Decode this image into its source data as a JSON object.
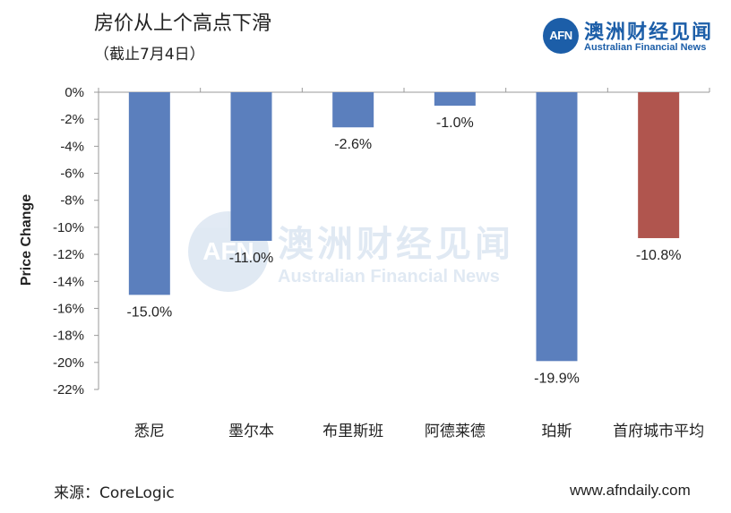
{
  "header": {
    "title": "房价从上个高点下滑",
    "subtitle": "（截止7月4日）"
  },
  "logo": {
    "badge": "AFN",
    "name_cn": "澳洲财经见闻",
    "name_en": "Australian Financial News"
  },
  "footer": {
    "source": "来源：CoreLogic",
    "website": "www.afndaily.com"
  },
  "colors": {
    "bar_default": "#5b7fbd",
    "bar_highlight": "#b0554e",
    "axis": "#9a9a9a",
    "brand": "#1c5ea8"
  },
  "chart_data": {
    "type": "bar",
    "title": "房价从上个高点下滑",
    "subtitle": "（截止7月4日）",
    "xlabel": "",
    "ylabel": "Price Change",
    "categories": [
      "悉尼",
      "墨尔本",
      "布里斯班",
      "阿德莱德",
      "珀斯",
      "首府城市平均"
    ],
    "values": [
      -15.0,
      -11.0,
      -2.6,
      -1.0,
      -19.9,
      -10.8
    ],
    "data_labels": [
      "-15.0%",
      "-11.0%",
      "-2.6%",
      "-1.0%",
      "-19.9%",
      "-10.8%"
    ],
    "highlight_index": 5,
    "ylim": [
      -22,
      0
    ],
    "yticks": [
      0,
      -2,
      -4,
      -6,
      -8,
      -10,
      -12,
      -14,
      -16,
      -18,
      -20,
      -22
    ],
    "ytick_labels": [
      "0%",
      "-2%",
      "-4%",
      "-6%",
      "-8%",
      "-10%",
      "-12%",
      "-14%",
      "-16%",
      "-18%",
      "-20%",
      "-22%"
    ],
    "grid": false,
    "legend": "none"
  }
}
